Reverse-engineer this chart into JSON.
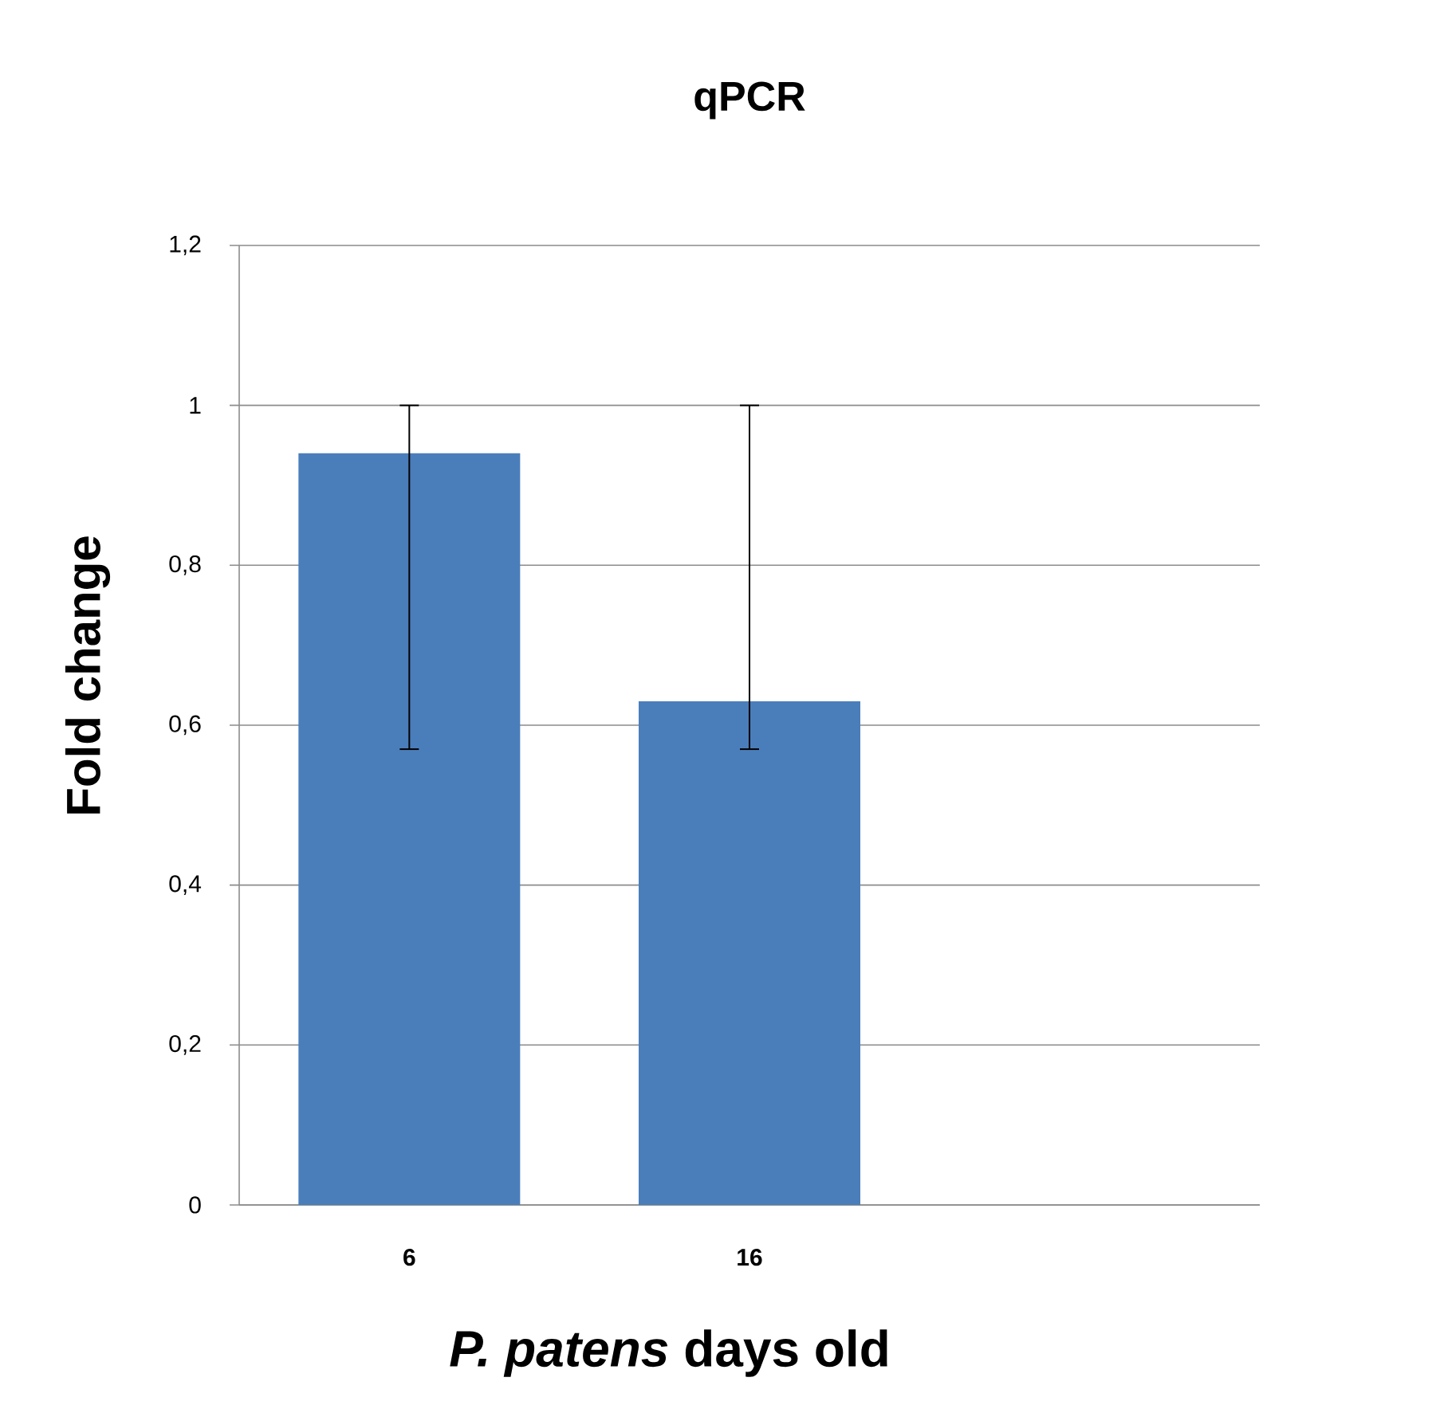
{
  "chart_data": {
    "type": "bar",
    "title": "qPCR",
    "xlabel": "*P. patens*  days old",
    "ylabel": "Fold change",
    "categories": [
      "6",
      "16",
      null
    ],
    "values": [
      0.94,
      0.63,
      null
    ],
    "errors": [
      [
        0.57,
        1.0
      ],
      [
        0.57,
        1.0
      ],
      null
    ],
    "color": "#4a7ebb",
    "ylim": [
      0,
      1.2
    ],
    "yticks": [
      0,
      {
        "value": 0.2,
        "label": "0,2"
      },
      {
        "value": 0.4,
        "label": "0,4"
      },
      {
        "value": 0.6,
        "label": "0,6"
      },
      {
        "value": 0.8,
        "label": "0,8"
      },
      1,
      {
        "value": 1.2,
        "label": "1,2"
      }
    ],
    "grid": "y"
  }
}
